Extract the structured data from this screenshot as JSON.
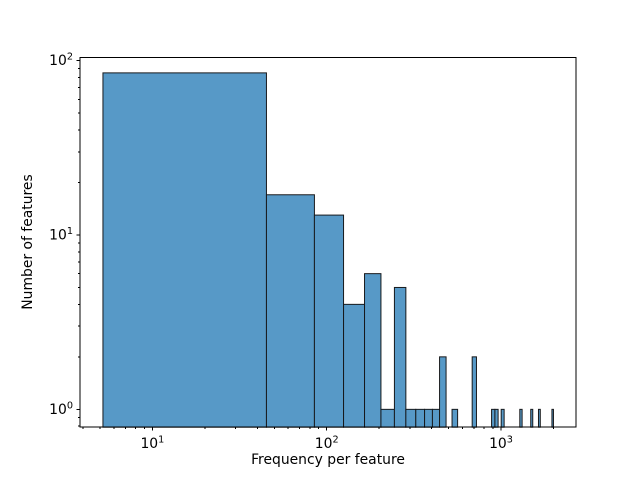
{
  "chart_data": {
    "type": "histogram",
    "title": "",
    "xlabel": "Frequency per feature",
    "ylabel": "Number of features",
    "x_scale": "log",
    "y_scale": "log",
    "xlim": [
      3.84,
      2694
    ],
    "ylim": [
      0.79,
      104
    ],
    "x_tick_exponents": [
      1,
      2,
      3
    ],
    "y_tick_exponents": [
      0,
      1,
      2
    ],
    "x_tick_labels": [
      "10¹",
      "10²",
      "10³"
    ],
    "y_tick_labels": [
      "10⁰",
      "10¹",
      "10²"
    ],
    "grid": false,
    "legend": null,
    "bin_edges": [
      5.2,
      45.1,
      85.0,
      124.9,
      164.8,
      204.7,
      244.6,
      284.5,
      324.4,
      364.3,
      404.2,
      444.1,
      484.0,
      523.8,
      563.7,
      603.6,
      643.5,
      683.4,
      723.3,
      763.2,
      803.1,
      843.0,
      882.9,
      922.8,
      962.7,
      1002.6,
      1042.5,
      1082.4,
      1122.3,
      1162.2,
      1202.1,
      1242.0,
      1281.9,
      1321.8,
      1361.7,
      1401.6,
      1441.5,
      1481.4,
      1521.2,
      1561.1,
      1601.0,
      1640.9,
      1680.8,
      1720.7,
      1760.6,
      1800.5,
      1840.4,
      1880.3,
      1920.2,
      1960.1,
      2000.0
    ],
    "counts": [
      85,
      17,
      13,
      4,
      6,
      1,
      5,
      1,
      1,
      1,
      1,
      2,
      0,
      1,
      0,
      0,
      0,
      2,
      0,
      0,
      0,
      0,
      1,
      1,
      0,
      1,
      0,
      0,
      0,
      0,
      0,
      0,
      1,
      0,
      0,
      0,
      0,
      1,
      0,
      0,
      0,
      1,
      0,
      0,
      0,
      0,
      0,
      0,
      0,
      1
    ],
    "colors": {
      "bar_fill": "#5799c7",
      "bar_edge": "#17191c",
      "axis": "#000000",
      "text": "#000000",
      "background": "#ffffff"
    }
  }
}
